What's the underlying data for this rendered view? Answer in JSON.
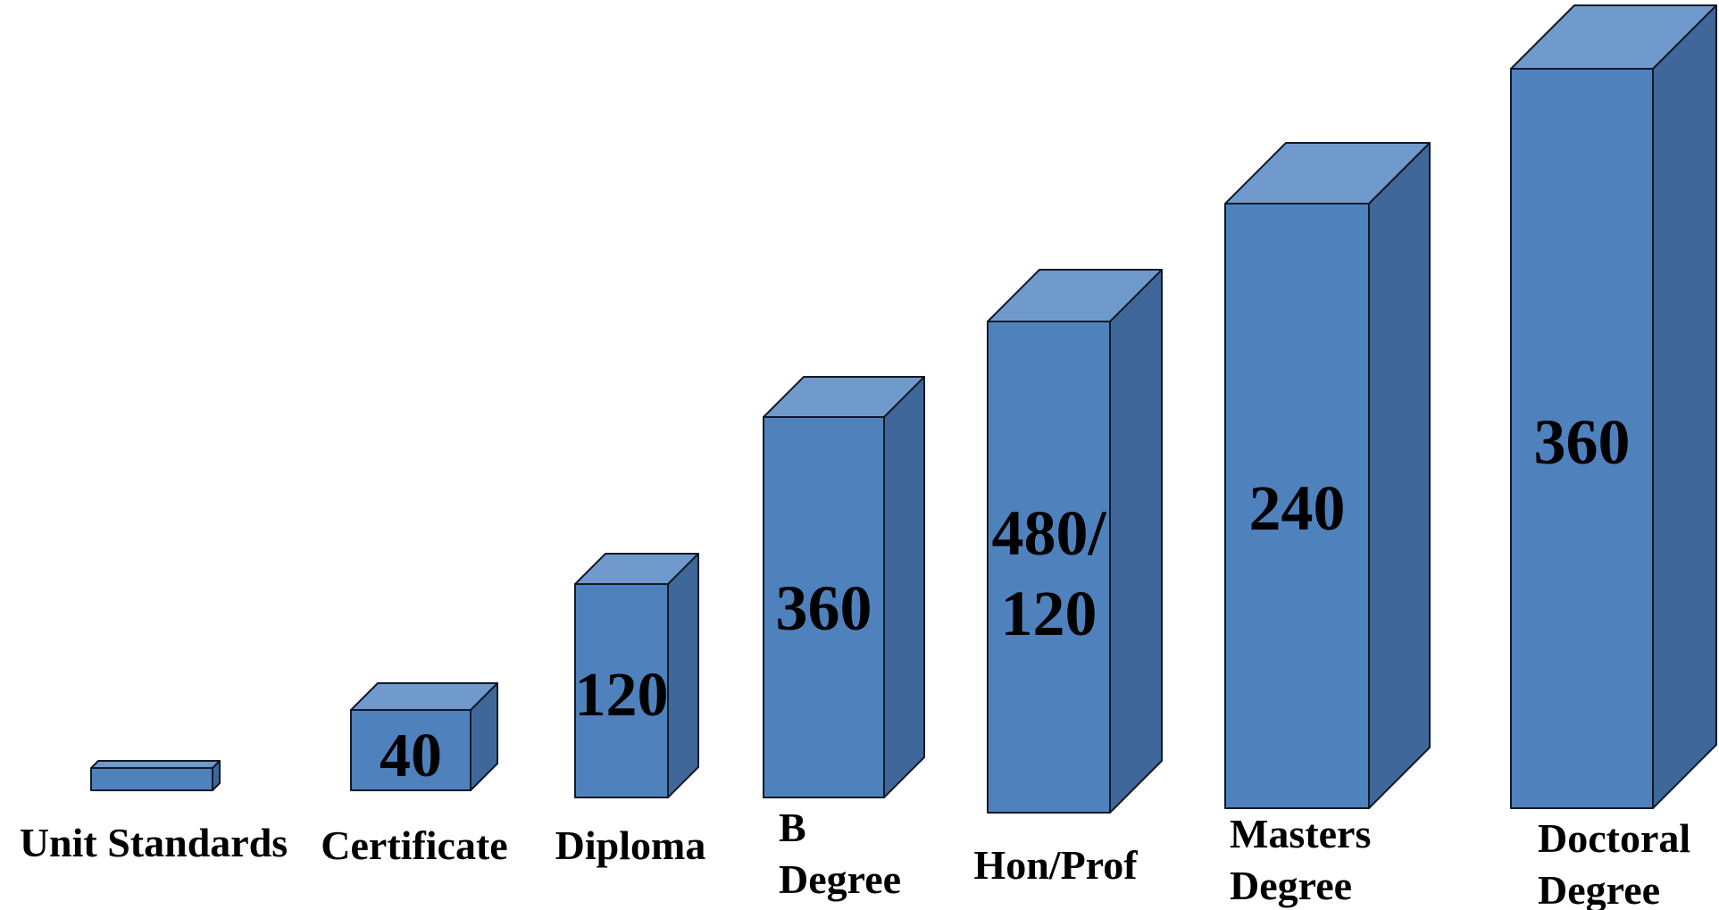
{
  "caption": "",
  "colors": {
    "front": "#4f81bd",
    "top": "#7099cc",
    "side": "#3f6799",
    "outline": "#0f1a2a",
    "text": "#000000"
  },
  "boxes": [
    {
      "id": "unit-standards",
      "value_lines": [],
      "label_lines": [
        "Unit Standards"
      ]
    },
    {
      "id": "certificate",
      "value_lines": [
        "40"
      ],
      "label_lines": [
        "Certificate"
      ]
    },
    {
      "id": "diploma",
      "value_lines": [
        "120"
      ],
      "label_lines": [
        "Diploma"
      ]
    },
    {
      "id": "b-degree",
      "value_lines": [
        "360"
      ],
      "label_lines": [
        "B",
        "Degree"
      ]
    },
    {
      "id": "hon-prof",
      "value_lines": [
        "480/",
        "120"
      ],
      "label_lines": [
        "Hon/Prof"
      ]
    },
    {
      "id": "masters-degree",
      "value_lines": [
        "240"
      ],
      "label_lines": [
        "Masters",
        "Degree"
      ]
    },
    {
      "id": "doctoral-degree",
      "value_lines": [
        "360"
      ],
      "label_lines": [
        "Doctoral",
        "Degree"
      ]
    }
  ]
}
